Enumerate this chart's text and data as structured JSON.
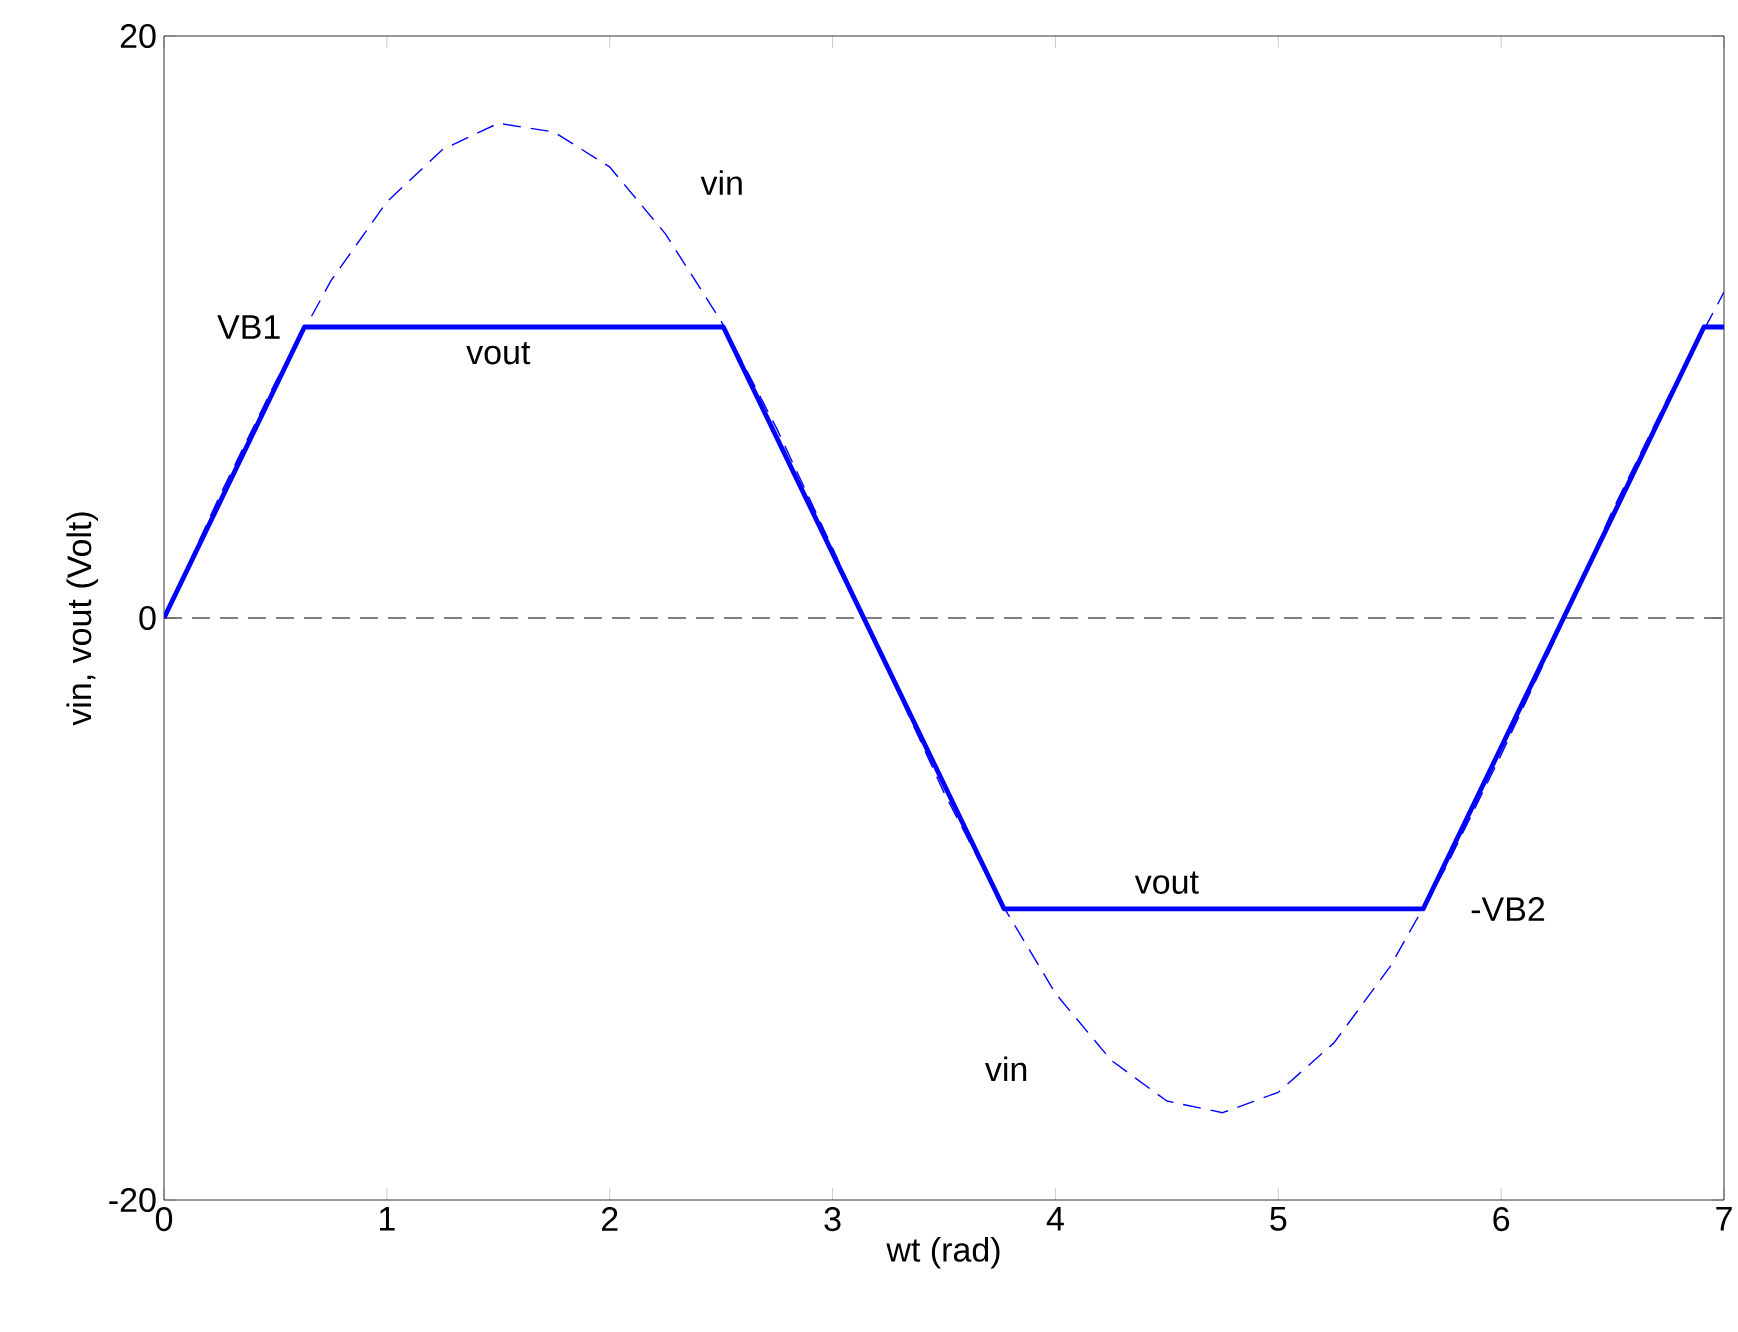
{
  "chart_data": {
    "type": "line",
    "xlabel": "wt (rad)",
    "ylabel": "vin, vout (Volt)",
    "xlim": [
      0,
      7
    ],
    "ylim": [
      -20,
      20
    ],
    "xticks": [
      0,
      1,
      2,
      3,
      4,
      5,
      6,
      7
    ],
    "yticks": [
      -20,
      0,
      20
    ],
    "grid": false,
    "marker": "none",
    "series": [
      {
        "color": "#0000ff",
        "line_style": "dashed",
        "x": [
          0,
          0.25,
          0.5,
          0.75,
          1,
          1.25,
          1.5,
          1.75,
          2,
          2.25,
          2.5,
          2.75,
          3,
          3.25,
          3.5,
          3.75,
          4,
          4.25,
          4.5,
          4.75,
          5,
          5.25,
          5.5,
          5.75,
          6,
          6.25,
          6.5,
          6.75,
          7
        ],
        "values": [
          0,
          4.2,
          8.1,
          11.6,
          14.3,
          16.1,
          17.0,
          16.7,
          15.5,
          13.2,
          10.2,
          6.5,
          2.4,
          -1.8,
          -6.0,
          -9.7,
          -12.9,
          -15.2,
          -16.6,
          -17.0,
          -16.3,
          -14.6,
          -12.0,
          -8.6,
          -4.7,
          -0.6,
          3.7,
          7.6,
          11.2
        ]
      },
      {
        "color": "#0000ff",
        "line_style": "solid",
        "x": [
          0,
          0.63,
          2.51,
          3.77,
          5.65,
          6.91,
          7
        ],
        "values": [
          0,
          10,
          10,
          -10,
          -10,
          10,
          10
        ]
      }
    ],
    "ref_lines": [
      {
        "axis": "y",
        "value": 0,
        "color": "#000000",
        "line_style": "dashed"
      }
    ],
    "annotations": [
      {
        "text": "vin",
        "x": 2.25,
        "y": 13.2
      },
      {
        "text": "VB1",
        "x": 0.63,
        "y": 10
      },
      {
        "text": "vout",
        "x": 1.5,
        "y": 10
      },
      {
        "text": "vout",
        "x": 4.5,
        "y": -10
      },
      {
        "text": "-VB2",
        "x": 5.65,
        "y": -10
      },
      {
        "text": "vin",
        "x": 4.0,
        "y": -12.9
      }
    ]
  }
}
